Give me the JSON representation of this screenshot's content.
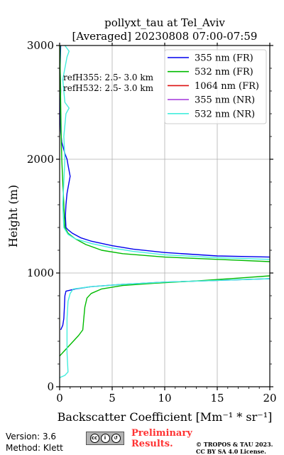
{
  "chart_data": {
    "type": "line",
    "title_line1": "pollyxt_tau at Tel_Aviv",
    "title_line2": "[Averaged] 20230808 07:00-07:59",
    "xlabel": "Backscatter Coefficient [Mm⁻¹ * sr⁻¹]",
    "ylabel": "Height (m)",
    "xlim": [
      0,
      20
    ],
    "ylim": [
      0,
      3000
    ],
    "xticks": [
      0,
      5,
      10,
      15,
      20
    ],
    "yticks": [
      0,
      1000,
      2000,
      3000
    ],
    "grid": true,
    "legend_position": "top-right",
    "annotations": [
      "refH355:  2.5- 3.0 km",
      "refH532:  2.5- 3.0 km"
    ],
    "series": [
      {
        "name": "355 nm (FR)",
        "color": "#0000ee",
        "points": [
          [
            0.1,
            500
          ],
          [
            0.3,
            540
          ],
          [
            0.4,
            600
          ],
          [
            0.45,
            700
          ],
          [
            0.5,
            800
          ],
          [
            0.6,
            840
          ],
          [
            1.5,
            860
          ],
          [
            3,
            880
          ],
          [
            6,
            900
          ],
          [
            10,
            920
          ],
          [
            15,
            935
          ],
          [
            20,
            950
          ]
        ]
      },
      {
        "name": "355 nm (FR) upper",
        "color": "#0000ee",
        "points": [
          [
            20,
            1140
          ],
          [
            15,
            1150
          ],
          [
            10,
            1180
          ],
          [
            7,
            1210
          ],
          [
            5,
            1240
          ],
          [
            3,
            1280
          ],
          [
            2,
            1310
          ],
          [
            1.2,
            1350
          ],
          [
            0.8,
            1380
          ],
          [
            0.6,
            1400
          ],
          [
            0.55,
            1500
          ],
          [
            0.6,
            1600
          ],
          [
            0.7,
            1700
          ],
          [
            0.9,
            1800
          ],
          [
            1.0,
            1850
          ],
          [
            0.9,
            1900
          ],
          [
            0.8,
            1950
          ],
          [
            0.7,
            2000
          ],
          [
            0.5,
            2050
          ],
          [
            0.35,
            2100
          ],
          [
            0.2,
            2150
          ],
          [
            0.1,
            2250
          ],
          [
            0.05,
            2400
          ],
          [
            0.1,
            2600
          ],
          [
            0.05,
            2800
          ],
          [
            0.1,
            3000
          ]
        ]
      },
      {
        "name": "532 nm (FR)",
        "color": "#00bb00",
        "points": [
          [
            0,
            270
          ],
          [
            0.3,
            300
          ],
          [
            0.8,
            350
          ],
          [
            1.3,
            400
          ],
          [
            1.8,
            450
          ],
          [
            2.2,
            500
          ],
          [
            2.3,
            600
          ],
          [
            2.4,
            700
          ],
          [
            2.6,
            780
          ],
          [
            3,
            820
          ],
          [
            4,
            860
          ],
          [
            6,
            890
          ],
          [
            9,
            910
          ],
          [
            13,
            930
          ],
          [
            17,
            955
          ],
          [
            20,
            975
          ]
        ]
      },
      {
        "name": "532 nm (FR) upper",
        "color": "#00bb00",
        "points": [
          [
            20,
            1100
          ],
          [
            15,
            1120
          ],
          [
            10,
            1140
          ],
          [
            6,
            1170
          ],
          [
            4,
            1200
          ],
          [
            2.5,
            1250
          ],
          [
            1.5,
            1300
          ],
          [
            0.8,
            1350
          ],
          [
            0.5,
            1400
          ],
          [
            0.4,
            1600
          ],
          [
            0.3,
            1800
          ],
          [
            0.2,
            2000
          ],
          [
            0.15,
            2200
          ],
          [
            0.1,
            2500
          ],
          [
            0.05,
            2800
          ],
          [
            0.05,
            3000
          ]
        ]
      },
      {
        "name": "355 nm (NR)",
        "color": "#aa44dd",
        "points": []
      },
      {
        "name": "532 nm (NR)",
        "color": "#44eedd",
        "points": [
          [
            0,
            80
          ],
          [
            0.5,
            100
          ],
          [
            0.8,
            130
          ],
          [
            0.7,
            300
          ],
          [
            0.7,
            600
          ],
          [
            0.8,
            750
          ],
          [
            1.0,
            820
          ],
          [
            1.3,
            860
          ],
          [
            3,
            880
          ],
          [
            6,
            900
          ],
          [
            10,
            920
          ],
          [
            15,
            935
          ],
          [
            20,
            950
          ]
        ]
      },
      {
        "name": "532 nm (NR) upper",
        "color": "#44eedd",
        "points": [
          [
            20,
            1120
          ],
          [
            15,
            1135
          ],
          [
            10,
            1160
          ],
          [
            7,
            1190
          ],
          [
            5,
            1220
          ],
          [
            3,
            1260
          ],
          [
            1.5,
            1300
          ],
          [
            0.8,
            1340
          ],
          [
            0.4,
            1400
          ],
          [
            0.3,
            1600
          ],
          [
            0.4,
            1800
          ],
          [
            0.5,
            2000
          ],
          [
            0.4,
            2200
          ],
          [
            0.6,
            2400
          ],
          [
            0.9,
            2450
          ],
          [
            0.5,
            2500
          ],
          [
            0.3,
            2700
          ],
          [
            0.7,
            2900
          ],
          [
            0.9,
            2950
          ],
          [
            0.5,
            3000
          ]
        ]
      }
    ],
    "legend": [
      {
        "label": "355 nm (FR)",
        "color": "#0000ee"
      },
      {
        "label": "532 nm (FR)",
        "color": "#00bb00"
      },
      {
        "label": "1064 nm (FR)",
        "color": "#dd1111"
      },
      {
        "label": "355 nm (NR)",
        "color": "#aa44dd"
      },
      {
        "label": "532 nm (NR)",
        "color": "#44eedd"
      }
    ]
  },
  "footer": {
    "version": "Version: 3.6",
    "method": "Method: Klett",
    "preliminary_line1": "Preliminary",
    "preliminary_line2": "Results.",
    "copyright_line1": "© TROPOS & TAU 2023.",
    "copyright_line2": "CC BY SA 4.0 License."
  }
}
